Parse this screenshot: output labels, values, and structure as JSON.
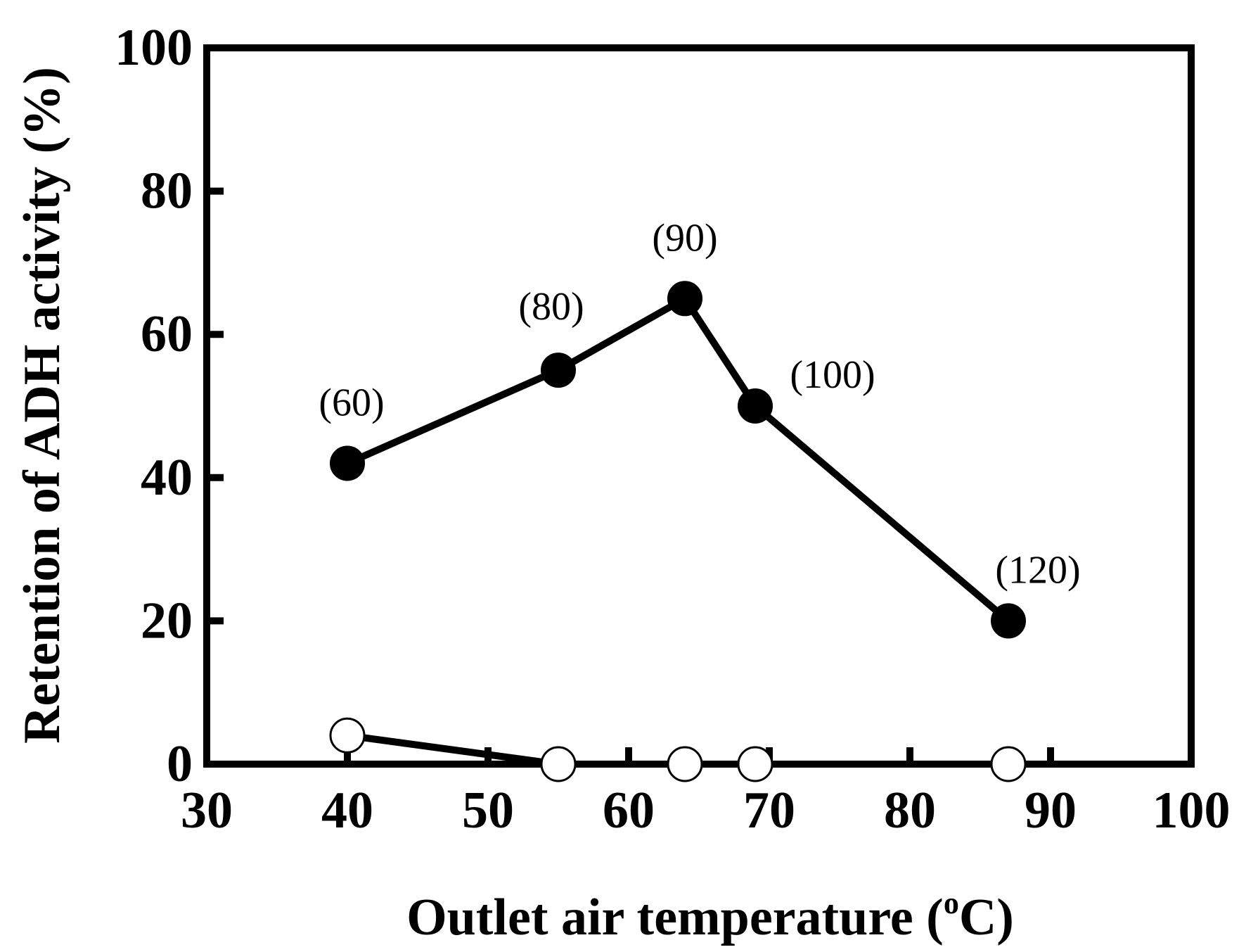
{
  "chart_data": {
    "type": "line",
    "title": "",
    "xlabel": "Outlet air temperature (",
    "xlabel_degree": "o",
    "xlabel_unit_end": "C)",
    "ylabel": "Retention of ADH activity (%)",
    "xlim": [
      30,
      100
    ],
    "ylim": [
      0,
      100
    ],
    "x_ticks": [
      30,
      40,
      50,
      60,
      70,
      80,
      90,
      100
    ],
    "x_tick_labels": [
      "30",
      "40",
      "50",
      "60",
      "70",
      "80",
      "90",
      "100"
    ],
    "y_ticks": [
      0,
      20,
      40,
      60,
      80,
      100
    ],
    "y_tick_labels": [
      "0",
      "20",
      "40",
      "60",
      "80",
      "100"
    ],
    "grid": false,
    "legend": "none",
    "series": [
      {
        "marker": "filled-circle",
        "color": "#000000",
        "points": [
          {
            "x": 40,
            "y": 42,
            "label": "(60)"
          },
          {
            "x": 55,
            "y": 55,
            "label": "(80)"
          },
          {
            "x": 64,
            "y": 65,
            "label": "(90)"
          },
          {
            "x": 69,
            "y": 50,
            "label": "(100)"
          },
          {
            "x": 87,
            "y": 20,
            "label": "(120)"
          }
        ]
      },
      {
        "marker": "open-circle",
        "color": "#000000",
        "points": [
          {
            "x": 40,
            "y": 4
          },
          {
            "x": 55,
            "y": 0
          },
          {
            "x": 64,
            "y": 0
          },
          {
            "x": 69,
            "y": 0
          },
          {
            "x": 87,
            "y": 0
          }
        ]
      }
    ]
  }
}
